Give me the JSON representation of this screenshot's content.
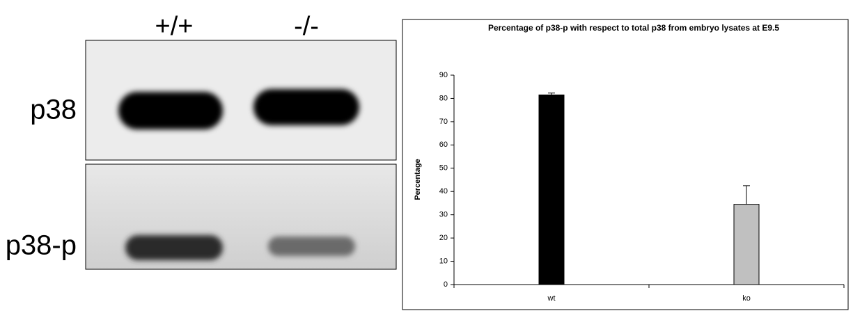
{
  "blot": {
    "lanes": [
      "+/+",
      "-/-"
    ],
    "rows": [
      "p38",
      "p38-p"
    ]
  },
  "chart_data": {
    "type": "bar",
    "title": "Percentage of p38-p with respect to total p38 from embryo lysates at E9.5",
    "y_label": "Percentage",
    "categories": [
      "wt",
      "ko"
    ],
    "values": [
      81.5,
      34.5
    ],
    "errors": [
      0.8,
      8
    ],
    "colors": [
      "#000000",
      "#c0c0c0"
    ],
    "ylim": [
      0,
      90
    ],
    "yticks": [
      0,
      10,
      20,
      30,
      40,
      50,
      60,
      70,
      80,
      90
    ]
  }
}
